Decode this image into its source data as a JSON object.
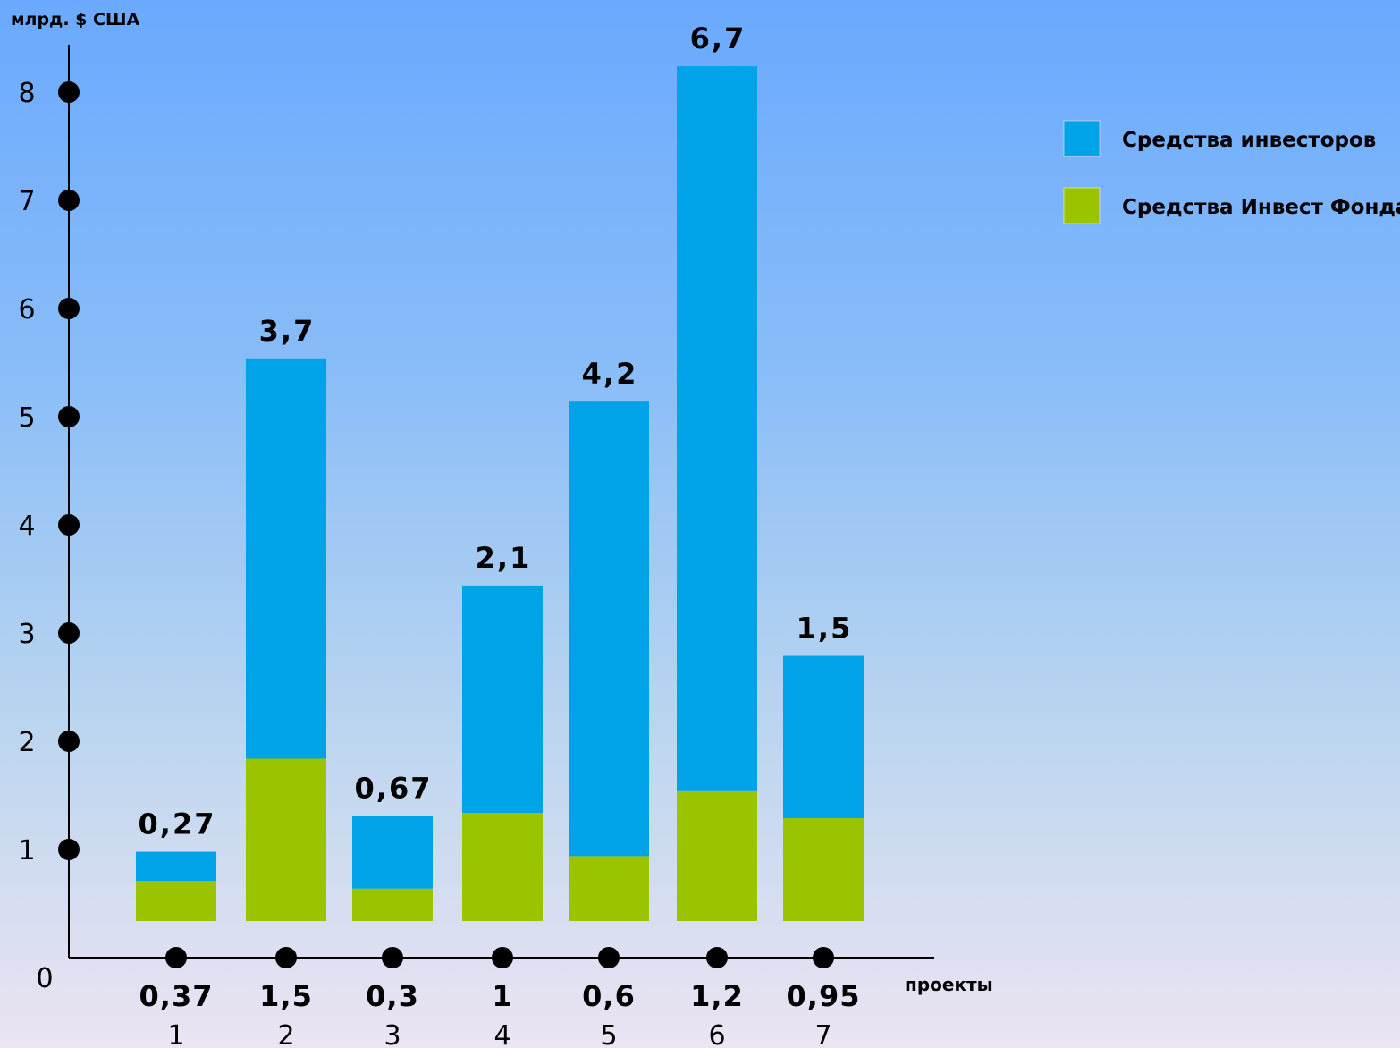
{
  "chart_data": {
    "type": "bar",
    "stacked": true,
    "unit_label": "млрд. $ США",
    "xlabel": "проекты",
    "ylabel": "млрд. $ США",
    "ylim": [
      0,
      8
    ],
    "yticks": [
      "0",
      "1",
      "2",
      "3",
      "4",
      "5",
      "6",
      "7",
      "8"
    ],
    "categories": [
      "1",
      "2",
      "3",
      "4",
      "5",
      "6",
      "7"
    ],
    "series": [
      {
        "name": "Средства Инвест Фонда",
        "color": "#9bc400",
        "values": [
          0.37,
          1.5,
          0.3,
          1,
          0.6,
          1.2,
          0.95
        ],
        "labels": [
          "0,37",
          "1,5",
          "0,3",
          "1",
          "0,6",
          "1,2",
          "0,95"
        ]
      },
      {
        "name": "Средства инвесторов",
        "color": "#00a3e8",
        "values": [
          0.27,
          3.7,
          0.67,
          2.1,
          4.2,
          6.7,
          1.5
        ],
        "labels": [
          "0,27",
          "3,7",
          "0,67",
          "2,1",
          "4,2",
          "6,7",
          "1,5"
        ]
      }
    ],
    "legend": {
      "position": "top-right",
      "items": [
        "Средства инвесторов",
        "Средства Инвест Фонда"
      ]
    },
    "grid": false
  }
}
